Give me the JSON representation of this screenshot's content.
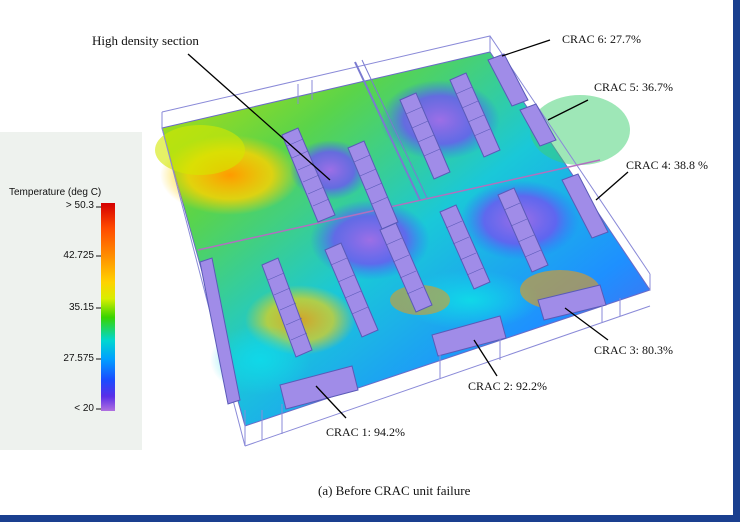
{
  "diagram": {
    "callouts": {
      "high_density": "High density section",
      "crac6": "CRAC 6:  27.7%",
      "crac5": "CRAC 5:  36.7%",
      "crac4": "CRAC 4:  38.8 %",
      "crac3": "CRAC 3:  80.3%",
      "crac2": "CRAC 2:  92.2%",
      "crac1": "CRAC 1:  94.2%"
    },
    "caption": "(a)  Before CRAC unit failure"
  },
  "legend": {
    "title": "Temperature (deg C)",
    "ticks": [
      "> 50.3",
      "42.725",
      "35.15",
      "27.575",
      "< 20"
    ]
  },
  "colors": {
    "frame_blue": "#1a3f8f",
    "rack_purple": "#a08ce8",
    "outline": "#7a7ad0"
  }
}
